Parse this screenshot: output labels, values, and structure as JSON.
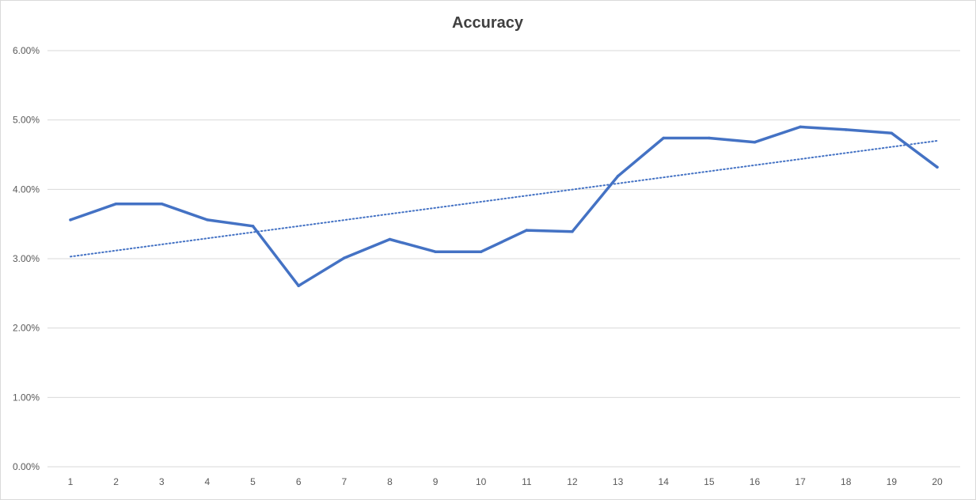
{
  "chart_data": {
    "type": "line",
    "title": "Accuracy",
    "xlabel": "",
    "ylabel": "",
    "categories": [
      "1",
      "2",
      "3",
      "4",
      "5",
      "6",
      "7",
      "8",
      "9",
      "10",
      "11",
      "12",
      "13",
      "14",
      "15",
      "16",
      "17",
      "18",
      "19",
      "20"
    ],
    "series": [
      {
        "values": [
          0.0356,
          0.0379,
          0.0379,
          0.0356,
          0.0347,
          0.0261,
          0.0301,
          0.0328,
          0.031,
          0.031,
          0.0341,
          0.0339,
          0.0419,
          0.0474,
          0.0474,
          0.0468,
          0.049,
          0.0486,
          0.0481,
          0.0432
        ],
        "color": "#4472c4"
      }
    ],
    "trendline": {
      "type": "linear",
      "start": 0.0303,
      "end": 0.047,
      "style": "dotted",
      "color": "#4472c4"
    },
    "ylim": [
      0,
      0.06
    ],
    "ytick_labels": [
      "0.00%",
      "1.00%",
      "2.00%",
      "3.00%",
      "4.00%",
      "5.00%",
      "6.00%"
    ],
    "grid": true,
    "legend": "none"
  }
}
